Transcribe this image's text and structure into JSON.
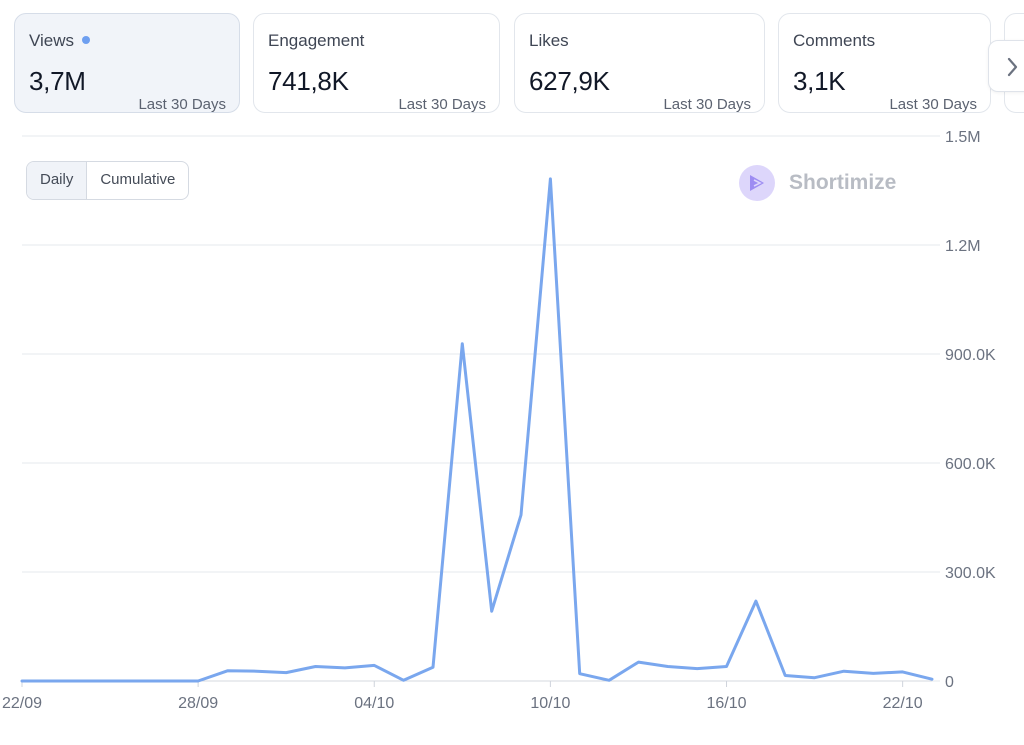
{
  "metric_cards": [
    {
      "label": "Views",
      "value": "3,7M",
      "period": "Last 30 Days",
      "active": true
    },
    {
      "label": "Engagement",
      "value": "741,8K",
      "period": "Last 30 Days",
      "active": false
    },
    {
      "label": "Likes",
      "value": "627,9K",
      "period": "Last 30 Days",
      "active": false
    },
    {
      "label": "Comments",
      "value": "3,1K",
      "period": "Last 30 Days",
      "active": false
    }
  ],
  "icons": {
    "next": "chevron-right-icon",
    "active_indicator": "dot-icon",
    "brand_logo": "shortimize-logo-icon"
  },
  "toggle": {
    "options": [
      "Daily",
      "Cumulative"
    ],
    "selected": "Daily"
  },
  "brand": {
    "name": "Shortimize"
  },
  "colors": {
    "line": "#7aa7ee",
    "accent_dot": "#6e9ff0",
    "brand_circle": "#ddd6fb",
    "brand_mark": "#9d8cf2",
    "grid": "#e5e8ee",
    "axis_text": "#6b7280"
  },
  "chart_data": {
    "type": "line",
    "title": "",
    "xlabel": "",
    "ylabel": "",
    "ylim": [
      0,
      1500000
    ],
    "y_ticks": [
      0,
      300000,
      600000,
      900000,
      1200000,
      1500000
    ],
    "y_tick_labels": [
      "0",
      "300.0K",
      "600.0K",
      "900.0K",
      "1.2M",
      "1.5M"
    ],
    "x_ticks": [
      "22/09",
      "28/09",
      "04/10",
      "10/10",
      "16/10",
      "22/10"
    ],
    "grid": true,
    "series": [
      {
        "x": [
          "22/09",
          "23/09",
          "24/09",
          "25/09",
          "26/09",
          "27/09",
          "28/09",
          "29/09",
          "30/09",
          "01/10",
          "02/10",
          "03/10",
          "04/10",
          "05/10",
          "06/10",
          "07/10",
          "08/10",
          "09/10",
          "10/10",
          "11/10",
          "12/10",
          "13/10",
          "14/10",
          "15/10",
          "16/10",
          "17/10",
          "18/10",
          "19/10",
          "20/10",
          "21/10",
          "22/10",
          "23/10"
        ],
        "values": [
          0,
          0,
          0,
          0,
          0,
          0,
          0,
          28000,
          27000,
          23000,
          40000,
          36000,
          43000,
          2000,
          38000,
          928000,
          192000,
          457000,
          1382000,
          20000,
          2000,
          52000,
          40000,
          34000,
          40000,
          220000,
          15000,
          9000,
          27000,
          21000,
          25000,
          5000
        ]
      }
    ]
  }
}
